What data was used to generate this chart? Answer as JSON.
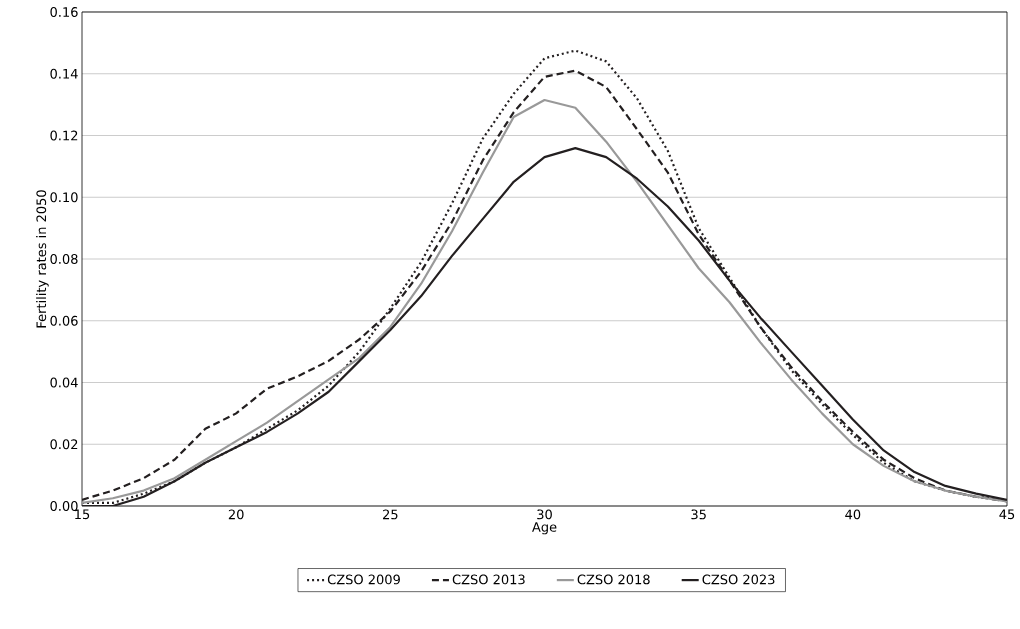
{
  "chart_data": {
    "type": "line",
    "xlabel": "Age",
    "ylabel": "Fertility rates in 2050",
    "x": [
      15,
      16,
      17,
      18,
      19,
      20,
      21,
      22,
      23,
      24,
      25,
      26,
      27,
      28,
      29,
      30,
      31,
      32,
      33,
      34,
      35,
      36,
      37,
      38,
      39,
      40,
      41,
      42,
      43,
      44,
      45
    ],
    "series": [
      {
        "name": "CZSO 2009",
        "color": "#231f20",
        "line_style": "dotted",
        "values": [
          0.001,
          0.001,
          0.004,
          0.008,
          0.014,
          0.019,
          0.025,
          0.031,
          0.039,
          0.05,
          0.064,
          0.079,
          0.098,
          0.119,
          0.1335,
          0.145,
          0.1475,
          0.144,
          0.132,
          0.115,
          0.09,
          0.074,
          0.058,
          0.044,
          0.033,
          0.023,
          0.014,
          0.008,
          0.005,
          0.003,
          0.002
        ]
      },
      {
        "name": "CZSO 2013",
        "color": "#231f20",
        "line_style": "dashed",
        "values": [
          0.002,
          0.005,
          0.009,
          0.015,
          0.025,
          0.03,
          0.038,
          0.042,
          0.047,
          0.054,
          0.063,
          0.076,
          0.092,
          0.112,
          0.1275,
          0.139,
          0.141,
          0.1357,
          0.122,
          0.108,
          0.088,
          0.073,
          0.058,
          0.045,
          0.034,
          0.024,
          0.015,
          0.009,
          0.005,
          0.003,
          0.0015
        ]
      },
      {
        "name": "CZSO 2018",
        "color": "#999999",
        "line_style": "solid",
        "values": [
          0.001,
          0.0025,
          0.005,
          0.009,
          0.015,
          0.021,
          0.027,
          0.034,
          0.041,
          0.048,
          0.058,
          0.072,
          0.089,
          0.108,
          0.126,
          0.1315,
          0.129,
          0.118,
          0.105,
          0.091,
          0.077,
          0.066,
          0.053,
          0.041,
          0.03,
          0.02,
          0.013,
          0.008,
          0.005,
          0.003,
          0.0015
        ]
      },
      {
        "name": "CZSO 2023",
        "color": "#231f20",
        "line_style": "solid",
        "values": [
          0.0,
          0.0,
          0.003,
          0.008,
          0.014,
          0.019,
          0.024,
          0.03,
          0.037,
          0.047,
          0.057,
          0.068,
          0.081,
          0.093,
          0.105,
          0.113,
          0.1159,
          0.113,
          0.106,
          0.097,
          0.086,
          0.073,
          0.061,
          0.05,
          0.039,
          0.028,
          0.018,
          0.011,
          0.0065,
          0.004,
          0.002
        ]
      }
    ],
    "xlim": [
      15,
      45
    ],
    "xticks": [
      15,
      20,
      25,
      30,
      35,
      40,
      45
    ],
    "ylim": [
      0,
      0.16
    ],
    "yticks": [
      {
        "value": 0,
        "label": "0.00"
      },
      {
        "value": 0.02,
        "label": "0.02"
      },
      {
        "value": 0.04,
        "label": "0.04"
      },
      {
        "value": 0.06,
        "label": "0.06"
      },
      {
        "value": 0.08,
        "label": "0.08"
      },
      {
        "value": 0.1,
        "label": "0.10"
      },
      {
        "value": 0.12,
        "label": "0.12"
      },
      {
        "value": 0.14,
        "label": "0.14"
      },
      {
        "value": 0.16,
        "label": "0.16"
      }
    ],
    "grid": "y",
    "legend": "bottom",
    "marker": "none"
  }
}
